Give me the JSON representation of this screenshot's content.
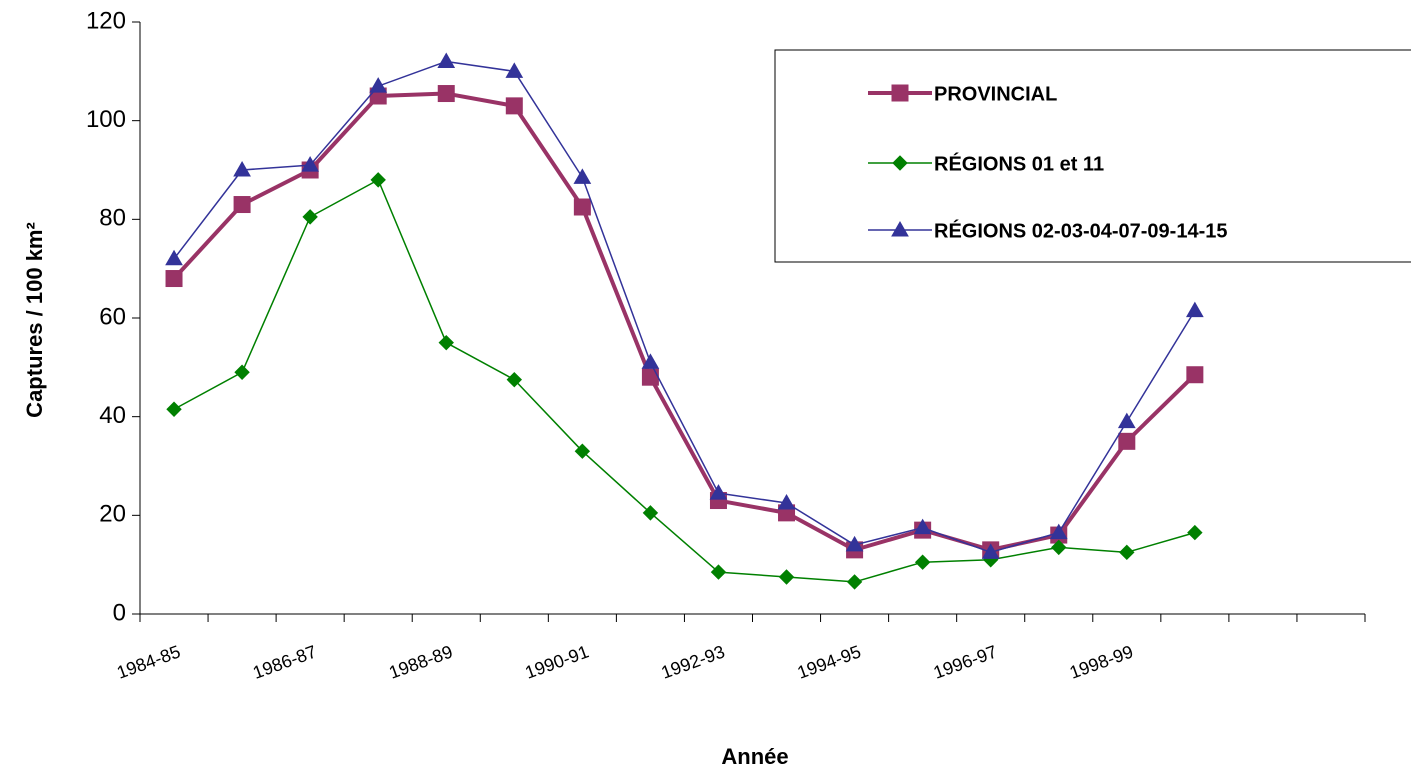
{
  "chart_data": {
    "type": "line",
    "x_label": "Année",
    "y_label": "Captures / 100 km²",
    "categories": [
      "1984-85",
      null,
      "1986-87",
      null,
      "1988-89",
      null,
      "1990-91",
      null,
      "1992-93",
      null,
      "1994-95",
      null,
      "1996-97",
      null,
      "1998-99",
      null,
      null,
      null
    ],
    "ylim": [
      0,
      120
    ],
    "yticks": [
      0,
      20,
      40,
      60,
      80,
      100,
      120
    ],
    "grid": false,
    "legend": "upper right",
    "series": [
      {
        "name": "PROVINCIAL",
        "color": "#993366",
        "marker": "square",
        "line_width": 4,
        "values": [
          68,
          83,
          90,
          105,
          105.5,
          103,
          82.5,
          48,
          23,
          20.5,
          13,
          17,
          13,
          16,
          35,
          48.5,
          null,
          null
        ]
      },
      {
        "name": "RÉGIONS 01 et 11",
        "color": "#008000",
        "marker": "diamond",
        "line_width": 1.5,
        "values": [
          41.5,
          49,
          80.5,
          88,
          55,
          47.5,
          33,
          20.5,
          8.5,
          7.5,
          6.5,
          10.5,
          11,
          13.5,
          12.5,
          16.5,
          null,
          null
        ]
      },
      {
        "name": "RÉGIONS 02-03-04-07-09-14-15",
        "color": "#333399",
        "marker": "triangle",
        "line_width": 1.5,
        "values": [
          72,
          90,
          91,
          107,
          112,
          110,
          88.5,
          51,
          24.5,
          22.5,
          14,
          17.5,
          12.5,
          16.5,
          39,
          61.5,
          null,
          null
        ]
      }
    ]
  }
}
